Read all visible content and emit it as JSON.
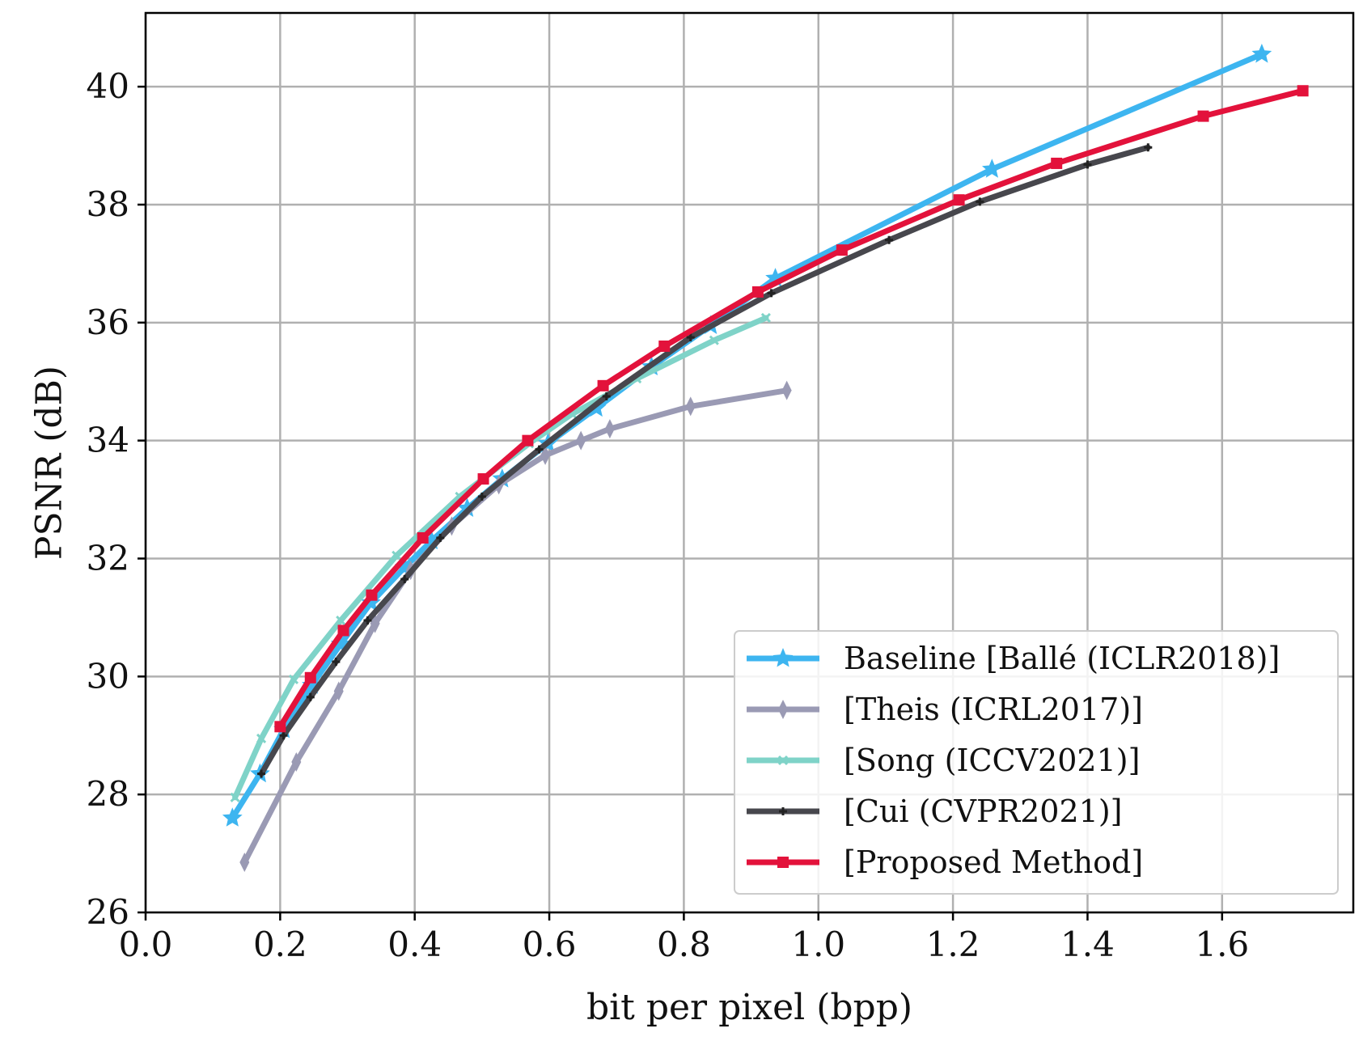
{
  "chart_data": {
    "type": "line",
    "title": "",
    "xlabel": "bit per pixel (bpp)",
    "ylabel": "PSNR (dB)",
    "xlim": [
      0.0,
      1.795
    ],
    "ylim": [
      26,
      41.25
    ],
    "xticks": [
      0.0,
      0.2,
      0.4,
      0.6,
      0.8,
      1.0,
      1.2,
      1.4,
      1.6
    ],
    "xtick_labels": [
      "0.0",
      "0.2",
      "0.4",
      "0.6",
      "0.8",
      "1.0",
      "1.2",
      "1.4",
      "1.6"
    ],
    "yticks": [
      26,
      28,
      30,
      32,
      34,
      36,
      38,
      40
    ],
    "ytick_labels": [
      "26",
      "28",
      "30",
      "32",
      "34",
      "36",
      "38",
      "40"
    ],
    "grid": true,
    "legend_position": "lower-right",
    "series": [
      {
        "name": "Baseline [Ballé (ICLR2018)]",
        "color": "#3db5f0",
        "marker": "star",
        "x": [
          0.129,
          0.17,
          0.205,
          0.247,
          0.29,
          0.335,
          0.385,
          0.425,
          0.478,
          0.53,
          0.598,
          0.67,
          0.752,
          0.84,
          0.936,
          1.258,
          1.659
        ],
        "y": [
          27.6,
          28.35,
          29.1,
          29.85,
          30.55,
          31.25,
          31.85,
          32.3,
          32.85,
          33.35,
          33.95,
          34.55,
          35.25,
          35.95,
          36.75,
          38.6,
          40.55
        ]
      },
      {
        "name": "[Theis (ICRL2017)]",
        "color": "#9a9ab4",
        "marker": "thin_diamond",
        "x": [
          0.147,
          0.224,
          0.287,
          0.341,
          0.394,
          0.455,
          0.525,
          0.594,
          0.647,
          0.69,
          0.81,
          0.953
        ],
        "y": [
          26.85,
          28.55,
          29.75,
          30.9,
          31.8,
          32.55,
          33.25,
          33.75,
          34.0,
          34.2,
          34.58,
          34.85
        ]
      },
      {
        "name": "[Song (ICCV2021)]",
        "color": "#7fd3c8",
        "marker": "x",
        "x": [
          0.133,
          0.172,
          0.22,
          0.29,
          0.373,
          0.467,
          0.57,
          0.634,
          0.73,
          0.845,
          0.922
        ],
        "y": [
          27.95,
          28.95,
          29.95,
          30.95,
          32.05,
          33.05,
          33.95,
          34.45,
          35.05,
          35.7,
          36.08
        ]
      },
      {
        "name": "[Cui (CVPR2021)]",
        "color": "#47474d",
        "marker": "plus",
        "x": [
          0.172,
          0.205,
          0.245,
          0.283,
          0.33,
          0.385,
          0.438,
          0.5,
          0.585,
          0.685,
          0.81,
          0.93,
          1.105,
          1.24,
          1.4,
          1.49
        ],
        "y": [
          28.35,
          29.0,
          29.65,
          30.25,
          30.95,
          31.65,
          32.35,
          33.05,
          33.85,
          34.75,
          35.75,
          36.5,
          37.4,
          38.05,
          38.68,
          38.97
        ]
      },
      {
        "name": "[Proposed Method]",
        "color": "#e3123b",
        "marker": "square",
        "x": [
          0.2,
          0.245,
          0.294,
          0.336,
          0.412,
          0.502,
          0.568,
          0.68,
          0.771,
          0.91,
          1.035,
          1.209,
          1.354,
          1.572,
          1.72
        ],
        "y": [
          29.15,
          29.98,
          30.78,
          31.38,
          32.35,
          33.35,
          34.0,
          34.93,
          35.6,
          36.52,
          37.23,
          38.08,
          38.7,
          39.5,
          39.93
        ]
      }
    ]
  }
}
